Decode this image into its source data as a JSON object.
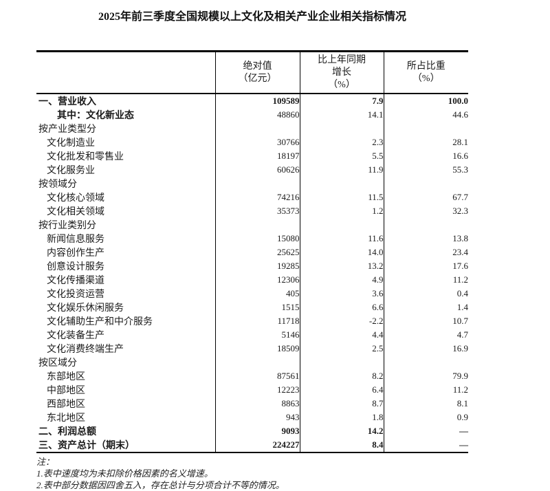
{
  "title": "2025年前三季度全国规模以上文化及相关产业企业相关指标情况",
  "table": {
    "headers": {
      "indicator": "",
      "absolute": "绝对值\n（亿元）",
      "growth": "比上年同期\n增长\n（%）",
      "share": "所占比重\n（%）"
    },
    "rows": [
      {
        "label": "一、营业收入",
        "indent": 0,
        "label_bold": true,
        "values_bold": true,
        "absolute": "109589",
        "growth": "7.9",
        "share": "100.0"
      },
      {
        "label": "其中：文化新业态",
        "indent": 2,
        "label_bold": true,
        "values_bold": false,
        "absolute": "48860",
        "growth": "14.1",
        "share": "44.6"
      },
      {
        "label": "按产业类型分",
        "indent": 0,
        "label_bold": false,
        "values_bold": false,
        "absolute": "",
        "growth": "",
        "share": ""
      },
      {
        "label": "文化制造业",
        "indent": 1,
        "label_bold": false,
        "values_bold": false,
        "absolute": "30766",
        "growth": "2.3",
        "share": "28.1"
      },
      {
        "label": "文化批发和零售业",
        "indent": 1,
        "label_bold": false,
        "values_bold": false,
        "absolute": "18197",
        "growth": "5.5",
        "share": "16.6"
      },
      {
        "label": "文化服务业",
        "indent": 1,
        "label_bold": false,
        "values_bold": false,
        "absolute": "60626",
        "growth": "11.9",
        "share": "55.3"
      },
      {
        "label": "按领域分",
        "indent": 0,
        "label_bold": false,
        "values_bold": false,
        "absolute": "",
        "growth": "",
        "share": ""
      },
      {
        "label": "文化核心领域",
        "indent": 1,
        "label_bold": false,
        "values_bold": false,
        "absolute": "74216",
        "growth": "11.5",
        "share": "67.7"
      },
      {
        "label": "文化相关领域",
        "indent": 1,
        "label_bold": false,
        "values_bold": false,
        "absolute": "35373",
        "growth": "1.2",
        "share": "32.3"
      },
      {
        "label": "按行业类别分",
        "indent": 0,
        "label_bold": false,
        "values_bold": false,
        "absolute": "",
        "growth": "",
        "share": ""
      },
      {
        "label": "新闻信息服务",
        "indent": 1,
        "label_bold": false,
        "values_bold": false,
        "absolute": "15080",
        "growth": "11.6",
        "share": "13.8"
      },
      {
        "label": "内容创作生产",
        "indent": 1,
        "label_bold": false,
        "values_bold": false,
        "absolute": "25625",
        "growth": "14.0",
        "share": "23.4"
      },
      {
        "label": "创意设计服务",
        "indent": 1,
        "label_bold": false,
        "values_bold": false,
        "absolute": "19285",
        "growth": "13.2",
        "share": "17.6"
      },
      {
        "label": "文化传播渠道",
        "indent": 1,
        "label_bold": false,
        "values_bold": false,
        "absolute": "12306",
        "growth": "4.9",
        "share": "11.2"
      },
      {
        "label": "文化投资运营",
        "indent": 1,
        "label_bold": false,
        "values_bold": false,
        "absolute": "405",
        "growth": "3.6",
        "share": "0.4"
      },
      {
        "label": "文化娱乐休闲服务",
        "indent": 1,
        "label_bold": false,
        "values_bold": false,
        "absolute": "1515",
        "growth": "6.6",
        "share": "1.4"
      },
      {
        "label": "文化辅助生产和中介服务",
        "indent": 1,
        "label_bold": false,
        "values_bold": false,
        "absolute": "11718",
        "growth": "-2.2",
        "share": "10.7"
      },
      {
        "label": "文化装备生产",
        "indent": 1,
        "label_bold": false,
        "values_bold": false,
        "absolute": "5146",
        "growth": "4.4",
        "share": "4.7"
      },
      {
        "label": "文化消费终端生产",
        "indent": 1,
        "label_bold": false,
        "values_bold": false,
        "absolute": "18509",
        "growth": "2.5",
        "share": "16.9"
      },
      {
        "label": "按区域分",
        "indent": 0,
        "label_bold": false,
        "values_bold": false,
        "absolute": "",
        "growth": "",
        "share": ""
      },
      {
        "label": "东部地区",
        "indent": 1,
        "label_bold": false,
        "values_bold": false,
        "absolute": "87561",
        "growth": "8.2",
        "share": "79.9"
      },
      {
        "label": "中部地区",
        "indent": 1,
        "label_bold": false,
        "values_bold": false,
        "absolute": "12223",
        "growth": "6.4",
        "share": "11.2"
      },
      {
        "label": "西部地区",
        "indent": 1,
        "label_bold": false,
        "values_bold": false,
        "absolute": "8863",
        "growth": "8.7",
        "share": "8.1"
      },
      {
        "label": "东北地区",
        "indent": 1,
        "label_bold": false,
        "values_bold": false,
        "absolute": "943",
        "growth": "1.8",
        "share": "0.9"
      },
      {
        "label": "二、利润总额",
        "indent": 0,
        "label_bold": true,
        "values_bold": true,
        "absolute": "9093",
        "growth": "14.2",
        "share": "—"
      },
      {
        "label": "三、资产总计（期末）",
        "indent": 0,
        "label_bold": true,
        "values_bold": true,
        "absolute": "224227",
        "growth": "8.4",
        "share": "—"
      }
    ]
  },
  "footnotes": {
    "heading": "注：",
    "items": [
      "1.表中速度均为未扣除价格因素的名义增速。",
      "2.表中部分数据因四舍五入，存在总计与分项合计不等的情况。"
    ]
  }
}
